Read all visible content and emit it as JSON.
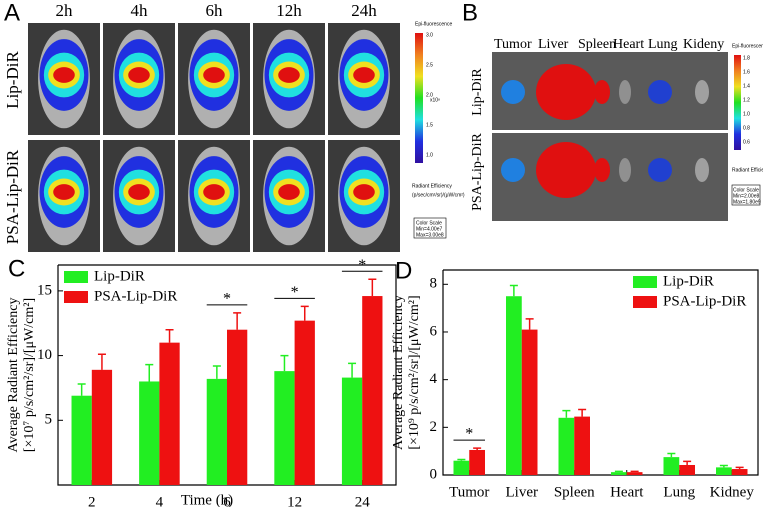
{
  "panel_a": {
    "label": "A",
    "times": [
      "2h",
      "4h",
      "6h",
      "12h",
      "24h"
    ],
    "rows": [
      "Lip-DiR",
      "PSA-Lip-DiR"
    ],
    "scale": {
      "title": "Epi-fluorescence",
      "ticks": [
        "3.0",
        "2.5",
        "2.0",
        "1.5",
        "1.0"
      ],
      "unit": "x10⁸",
      "label": "Radiant Efficiency",
      "units": "(p/sec/cm²/sr)/(μW/cm²)",
      "box": [
        "Color Scale",
        "Min=4.00e7",
        "Max=3.00e8"
      ]
    }
  },
  "panel_b": {
    "label": "B",
    "organs": [
      "Tumor",
      "Liver",
      "Spleen",
      "Heart",
      "Lung",
      "Kideny"
    ],
    "rows": [
      "Lip-DiR",
      "PSA-Lip-DiR"
    ],
    "scale": {
      "title": "Epi-fluorescence",
      "ticks": [
        "1.8",
        "1.6",
        "1.4",
        "1.2",
        "1.0",
        "0.8",
        "0.6"
      ],
      "label": "Radiant Efficiency",
      "box": [
        "Color Scale",
        "Min=2.00e8",
        "Max=1.80e9"
      ]
    }
  },
  "chart_data": [
    {
      "type": "bar",
      "panel_label": "C",
      "x_label": "Time (h)",
      "y_label": [
        "Average Radiant Efficiency",
        "[×10⁷ p/s/cm²/sr]/[μW/cm²]"
      ],
      "categories": [
        "2",
        "4",
        "6",
        "12",
        "24"
      ],
      "series": [
        {
          "name": "Lip-DiR",
          "color": "#22ee22",
          "values": [
            6.9,
            8.0,
            8.2,
            8.8,
            8.3
          ],
          "errors": [
            0.9,
            1.3,
            1.0,
            1.2,
            1.1
          ]
        },
        {
          "name": "PSA-Lip-DiR",
          "color": "#ee1111",
          "values": [
            8.9,
            11.0,
            12.0,
            12.7,
            14.6
          ],
          "errors": [
            1.2,
            1.0,
            1.3,
            1.1,
            1.3
          ]
        }
      ],
      "ylim": [
        0,
        17
      ],
      "yticks": [
        5,
        10,
        15
      ],
      "legend": "upper-left",
      "annotations": [
        {
          "text": "*",
          "category": "6"
        },
        {
          "text": "*",
          "category": "12"
        },
        {
          "text": "*",
          "category": "24"
        }
      ]
    },
    {
      "type": "bar",
      "panel_label": "D",
      "y_label": [
        "Average Radiant Efficiency",
        "[×10⁹ p/s/cm²/sr]/[μW/cm²]"
      ],
      "categories": [
        "Tumor",
        "Liver",
        "Spleen",
        "Heart",
        "Lung",
        "Kidney"
      ],
      "series": [
        {
          "name": "Lip-DiR",
          "color": "#22ee22",
          "values": [
            0.6,
            7.5,
            2.4,
            0.12,
            0.75,
            0.32
          ],
          "errors": [
            0.05,
            0.45,
            0.3,
            0.03,
            0.15,
            0.08
          ]
        },
        {
          "name": "PSA-Lip-DiR",
          "color": "#ee1111",
          "values": [
            1.05,
            6.1,
            2.45,
            0.12,
            0.42,
            0.25
          ],
          "errors": [
            0.08,
            0.45,
            0.3,
            0.03,
            0.15,
            0.07
          ]
        }
      ],
      "ylim": [
        0,
        8.6
      ],
      "yticks": [
        0,
        2,
        4,
        6,
        8
      ],
      "legend": "upper-right",
      "annotations": [
        {
          "text": "*",
          "category": "Tumor"
        }
      ]
    }
  ]
}
